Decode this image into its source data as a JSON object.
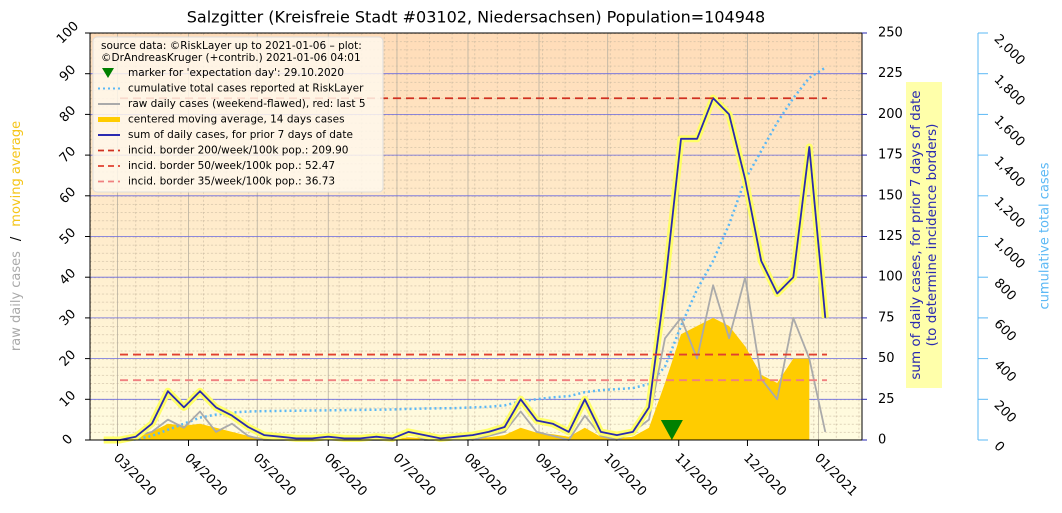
{
  "chart_data": {
    "type": "line",
    "title": "Salzgitter (Kreisfreie Stadt #03102, Niedersachsen) Population=104948",
    "ylabel_parts": [
      {
        "text": "raw daily cases",
        "color": "#aaaaaa"
      },
      {
        "text": "/",
        "color": "#000000"
      },
      {
        "text": "moving average",
        "color": "#f5c518"
      }
    ],
    "y2label": [
      "sum of daily cases, for prior 7 days of date",
      "(to determine incidence borders)"
    ],
    "y3label": "cumulative total cases",
    "legend_title": [
      "source data: ©RiskLayer up to 2021-01-06 – plot:",
      "©DrAndreasKruger (+contrib.) 2021-01-06 04:01"
    ],
    "legend": "upper left",
    "grid": true,
    "xlim": [
      "2020-02-18",
      "2021-01-20"
    ],
    "xticks": [
      {
        "value": "2020-03-01",
        "label": "03/2020"
      },
      {
        "value": "2020-04-01",
        "label": "04/2020"
      },
      {
        "value": "2020-05-01",
        "label": "05/2020"
      },
      {
        "value": "2020-06-01",
        "label": "06/2020"
      },
      {
        "value": "2020-07-01",
        "label": "07/2020"
      },
      {
        "value": "2020-08-01",
        "label": "08/2020"
      },
      {
        "value": "2020-09-01",
        "label": "09/2020"
      },
      {
        "value": "2020-10-01",
        "label": "10/2020"
      },
      {
        "value": "2020-11-01",
        "label": "11/2020"
      },
      {
        "value": "2020-12-01",
        "label": "12/2020"
      },
      {
        "value": "2021-01-01",
        "label": "01/2021"
      }
    ],
    "ylim": [
      0,
      100
    ],
    "yticks": [
      0,
      10,
      20,
      30,
      40,
      50,
      60,
      70,
      80,
      90,
      100
    ],
    "y2lim": [
      0,
      250
    ],
    "y2ticks": [
      0,
      25,
      50,
      75,
      100,
      125,
      150,
      175,
      200,
      225,
      250
    ],
    "y3lim": [
      0,
      2000
    ],
    "y3ticks": [
      0,
      200,
      400,
      600,
      800,
      {
        "value": 1000,
        "label": "1,000"
      },
      {
        "value": 1200,
        "label": "1,200"
      },
      {
        "value": 1400,
        "label": "1,400"
      },
      {
        "value": 1600,
        "label": "1,600"
      },
      {
        "value": 1800,
        "label": "1,800"
      },
      {
        "value": 2000,
        "label": "2,000"
      }
    ],
    "markers": [
      {
        "name": "marker for 'expectation day': 29.10.2020",
        "x": "2020-10-29",
        "color": "#008000"
      }
    ],
    "x": [
      "2020-02-24",
      "2020-03-02",
      "2020-03-09",
      "2020-03-16",
      "2020-03-23",
      "2020-03-30",
      "2020-04-06",
      "2020-04-13",
      "2020-04-20",
      "2020-04-27",
      "2020-05-04",
      "2020-05-11",
      "2020-05-18",
      "2020-05-25",
      "2020-06-01",
      "2020-06-08",
      "2020-06-15",
      "2020-06-22",
      "2020-06-29",
      "2020-07-06",
      "2020-07-13",
      "2020-07-20",
      "2020-07-27",
      "2020-08-03",
      "2020-08-10",
      "2020-08-17",
      "2020-08-24",
      "2020-08-31",
      "2020-09-07",
      "2020-09-14",
      "2020-09-21",
      "2020-09-28",
      "2020-10-05",
      "2020-10-12",
      "2020-10-19",
      "2020-10-26",
      "2020-11-02",
      "2020-11-09",
      "2020-11-16",
      "2020-11-23",
      "2020-11-30",
      "2020-12-07",
      "2020-12-14",
      "2020-12-21",
      "2020-12-28",
      "2021-01-04"
    ],
    "series": [
      {
        "name": "cumulative total cases reported at RiskLayer",
        "color": "#5bb8f5",
        "axis": "y3",
        "style": "dotted",
        "values": [
          0,
          0,
          3,
          20,
          50,
          80,
          110,
          125,
          135,
          140,
          142,
          143,
          144,
          145,
          146,
          147,
          148,
          149,
          150,
          153,
          155,
          156,
          157,
          160,
          163,
          170,
          190,
          200,
          210,
          215,
          235,
          245,
          250,
          255,
          275,
          360,
          560,
          740,
          880,
          1060,
          1280,
          1420,
          1560,
          1680,
          1780,
          1830
        ]
      },
      {
        "name": "raw daily cases (weekend-flawed), red: last 5",
        "color": "#aaaaaa",
        "axis": "y",
        "style": "line",
        "values": [
          0,
          0,
          1,
          2,
          5,
          3,
          7,
          2,
          4,
          1,
          0,
          0,
          0,
          0,
          1,
          0,
          0,
          0,
          0,
          2,
          0,
          0,
          1,
          0,
          1,
          2,
          7,
          2,
          1,
          0,
          6,
          1,
          0,
          2,
          5,
          25,
          30,
          20,
          38,
          25,
          40,
          15,
          10,
          30,
          20,
          2
        ]
      },
      {
        "name": "centered moving average, 14 days cases",
        "color": "#ffcc00",
        "axis": "y",
        "style": "area",
        "values": [
          0,
          0,
          0.5,
          2,
          4,
          3.5,
          4,
          3,
          2,
          1,
          0.5,
          0.3,
          0.2,
          0.2,
          0.3,
          0.2,
          0.2,
          0.3,
          0.2,
          0.7,
          0.4,
          0.2,
          0.3,
          0.4,
          0.7,
          1.2,
          3,
          1.8,
          1.4,
          0.8,
          3,
          0.8,
          0.5,
          0.8,
          3,
          14,
          26,
          28,
          30,
          28,
          23,
          16,
          14,
          20,
          20,
          null
        ]
      },
      {
        "name": "sum of daily cases, for prior 7 days of date",
        "color": "#2a2ab0",
        "glow": "#ffff66",
        "axis": "y2",
        "style": "line",
        "values": [
          0,
          0,
          2,
          10,
          30,
          20,
          30,
          20,
          15,
          8,
          3,
          2,
          1,
          1,
          2,
          1,
          1,
          2,
          1,
          5,
          3,
          1,
          2,
          3,
          5,
          8,
          25,
          12,
          10,
          5,
          25,
          5,
          3,
          5,
          20,
          95,
          185,
          185,
          210,
          200,
          160,
          110,
          90,
          100,
          180,
          75
        ]
      }
    ],
    "hlines": [
      {
        "name": "incid. border 200/week/100k pop.: 209.90",
        "value": 209.9,
        "color": "#d03020",
        "axis": "y2"
      },
      {
        "name": "incid. border 50/week/100k pop.: 52.47",
        "value": 52.47,
        "color": "#e04030",
        "axis": "y2"
      },
      {
        "name": "incid. border 35/week/100k pop.: 36.73",
        "value": 36.73,
        "color": "#f08080",
        "axis": "y2"
      }
    ]
  }
}
